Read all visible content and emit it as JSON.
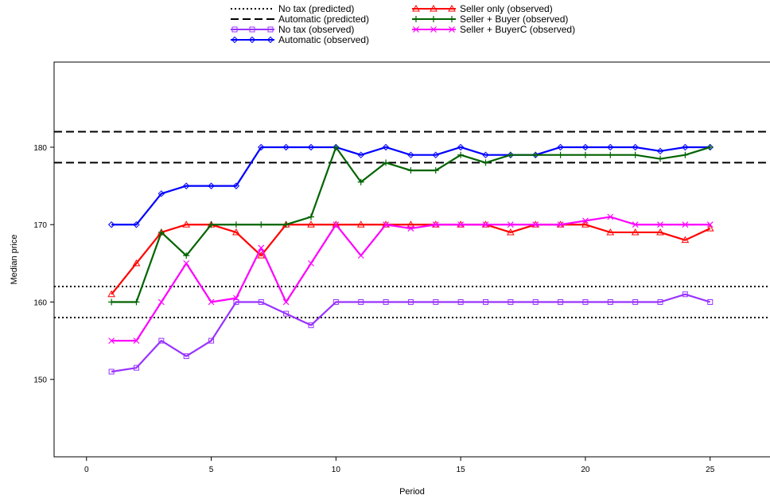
{
  "chart_data": {
    "type": "line",
    "title": "",
    "xlabel": "Period",
    "ylabel": "Median price",
    "xlim": [
      -1.3,
      27.4
    ],
    "ylim": [
      140,
      191
    ],
    "x_ticks": [
      0,
      5,
      10,
      15,
      20,
      25
    ],
    "y_ticks": [
      150,
      160,
      170,
      180
    ],
    "grid": false,
    "legend_position": "top",
    "reference_lines": [
      {
        "name": "No tax (predicted)",
        "style": "dotted",
        "color": "#000000",
        "values": [
          158,
          162
        ]
      },
      {
        "name": "Automatic (predicted)",
        "style": "dashed",
        "color": "#000000",
        "values": [
          178,
          182
        ]
      }
    ],
    "x": [
      1,
      2,
      3,
      4,
      5,
      6,
      7,
      8,
      9,
      10,
      11,
      12,
      13,
      14,
      15,
      16,
      17,
      18,
      19,
      20,
      21,
      22,
      23,
      24,
      25
    ],
    "series": [
      {
        "name": "No tax (observed)",
        "color": "#9933ff",
        "marker": "square",
        "values": [
          151,
          151.5,
          155,
          153,
          155,
          160,
          160,
          158.5,
          157,
          160,
          160,
          160,
          160,
          160,
          160,
          160,
          160,
          160,
          160,
          160,
          160,
          160,
          160,
          161,
          160
        ]
      },
      {
        "name": "Automatic (observed)",
        "color": "#0000ff",
        "marker": "diamond",
        "values": [
          170,
          170,
          174,
          175,
          175,
          175,
          180,
          180,
          180,
          180,
          179,
          180,
          179,
          179,
          180,
          179,
          179,
          179,
          180,
          180,
          180,
          180,
          179.5,
          180,
          180
        ]
      },
      {
        "name": "Seller only (observed)",
        "color": "#ff0000",
        "marker": "triangle",
        "values": [
          161,
          165,
          169,
          170,
          170,
          169,
          166,
          170,
          170,
          170,
          170,
          170,
          170,
          170,
          170,
          170,
          169,
          170,
          170,
          170,
          169,
          169,
          169,
          168,
          169.5
        ]
      },
      {
        "name": "Seller + Buyer (observed)",
        "color": "#006400",
        "marker": "plus",
        "values": [
          160,
          160,
          169,
          166,
          170,
          170,
          170,
          170,
          171,
          180,
          175.5,
          178,
          177,
          177,
          179,
          178,
          179,
          179,
          179,
          179,
          179,
          179,
          178.5,
          179,
          180
        ]
      },
      {
        "name": "Seller + BuyerC (observed)",
        "color": "#ff00ff",
        "marker": "cross",
        "values": [
          155,
          155,
          160,
          165,
          160,
          160.5,
          167,
          160,
          165,
          170,
          166,
          170,
          169.5,
          170,
          170,
          170,
          170,
          170,
          170,
          170.5,
          171,
          170,
          170,
          170,
          170
        ]
      }
    ]
  }
}
